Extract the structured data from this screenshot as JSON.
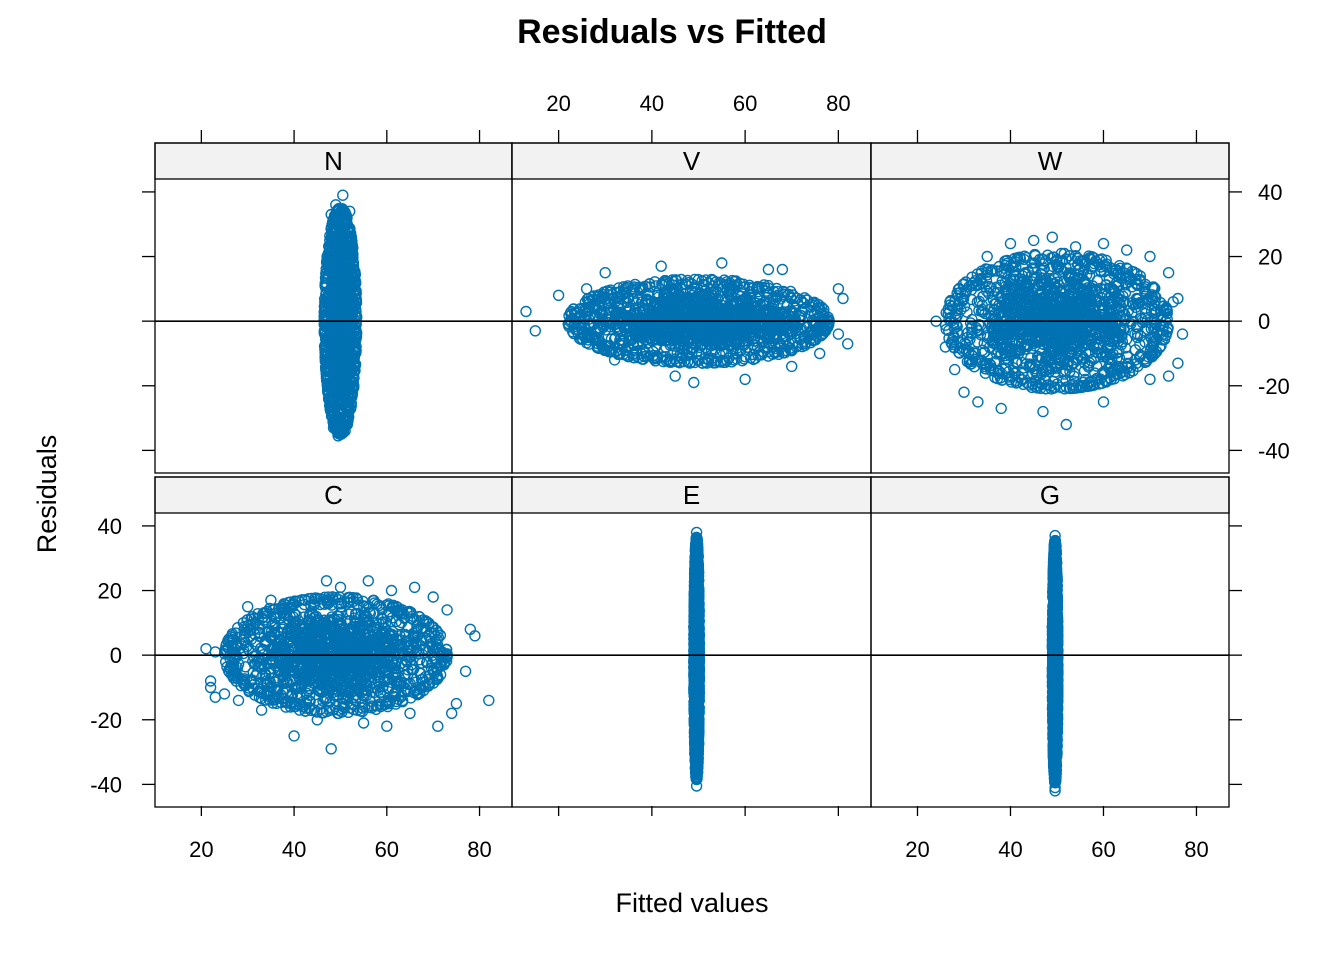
{
  "chart_data": {
    "type": "scatter",
    "title": "Residuals vs Fitted",
    "xlabel": "Fitted values",
    "ylabel": "Residuals",
    "xlim": [
      10,
      87
    ],
    "ylim": [
      -47,
      44
    ],
    "x_ticks": [
      20,
      40,
      60,
      80
    ],
    "y_ticks": [
      -40,
      -20,
      0,
      20,
      40
    ],
    "reference_line_y": 0,
    "grid": false,
    "point_color": "#0072B2",
    "point_symbol": "open-circle",
    "layout": {
      "columns": 3,
      "rows": 2
    },
    "panels": [
      {
        "label": "N",
        "cloud": {
          "x_center": 50,
          "x_halfwidth": 3.5,
          "y_center": 0,
          "y_halfheight": 35
        },
        "points": [
          [
            50.5,
            39
          ],
          [
            49.5,
            -35.5
          ],
          [
            48,
            33
          ],
          [
            52,
            34
          ],
          [
            48.5,
            -33
          ],
          [
            51.5,
            -32
          ],
          [
            47.5,
            20
          ],
          [
            52.5,
            -20
          ],
          [
            47.5,
            -8
          ],
          [
            52.5,
            10
          ],
          [
            49,
            36
          ],
          [
            51,
            -34
          ]
        ]
      },
      {
        "label": "V",
        "cloud": {
          "x_center": 50,
          "x_halfwidth": 28,
          "y_center": 0,
          "y_halfheight": 13
        },
        "points": [
          [
            13,
            3
          ],
          [
            15,
            -3
          ],
          [
            20,
            8
          ],
          [
            81,
            7
          ],
          [
            82,
            -7
          ],
          [
            80,
            10
          ],
          [
            80,
            -4
          ],
          [
            42,
            17
          ],
          [
            55,
            18
          ],
          [
            65,
            16
          ],
          [
            45,
            -17
          ],
          [
            60,
            -18
          ],
          [
            70,
            -14
          ],
          [
            68,
            16
          ],
          [
            30,
            15
          ],
          [
            32,
            -12
          ],
          [
            76,
            -10
          ],
          [
            26,
            10
          ],
          [
            49,
            -19
          ]
        ]
      },
      {
        "label": "W",
        "cloud": {
          "x_center": 50,
          "x_halfwidth": 24,
          "y_center": 0,
          "y_halfheight": 21
        },
        "points": [
          [
            24,
            0
          ],
          [
            26,
            -8
          ],
          [
            28,
            -15
          ],
          [
            30,
            -22
          ],
          [
            33,
            -25
          ],
          [
            38,
            -27
          ],
          [
            52,
            -32
          ],
          [
            47,
            -28
          ],
          [
            60,
            -25
          ],
          [
            70,
            -18
          ],
          [
            74,
            -17
          ],
          [
            76,
            -13
          ],
          [
            76,
            7
          ],
          [
            74,
            15
          ],
          [
            70,
            20
          ],
          [
            65,
            22
          ],
          [
            60,
            24
          ],
          [
            54,
            23
          ],
          [
            49,
            26
          ],
          [
            45,
            25
          ],
          [
            40,
            24
          ],
          [
            35,
            20
          ],
          [
            29,
            10
          ],
          [
            27,
            5
          ],
          [
            77,
            -4
          ],
          [
            75,
            6
          ]
        ]
      },
      {
        "label": "C",
        "cloud": {
          "x_center": 49,
          "x_halfwidth": 24,
          "y_center": 0,
          "y_halfheight": 18
        },
        "points": [
          [
            21,
            2
          ],
          [
            23,
            1
          ],
          [
            22,
            -8
          ],
          [
            22,
            -10
          ],
          [
            23,
            -13
          ],
          [
            25,
            -12
          ],
          [
            79,
            6
          ],
          [
            78,
            8
          ],
          [
            82,
            -14
          ],
          [
            77,
            -5
          ],
          [
            75,
            -15
          ],
          [
            74,
            -18
          ],
          [
            71,
            -22
          ],
          [
            48,
            -29
          ],
          [
            40,
            -25
          ],
          [
            45,
            -20
          ],
          [
            50,
            21
          ],
          [
            56,
            23
          ],
          [
            61,
            20
          ],
          [
            66,
            21
          ],
          [
            70,
            18
          ],
          [
            47,
            23
          ],
          [
            55,
            -21
          ],
          [
            65,
            -18
          ],
          [
            60,
            -22
          ],
          [
            30,
            15
          ],
          [
            35,
            17
          ],
          [
            28,
            -14
          ],
          [
            33,
            -17
          ],
          [
            73,
            14
          ]
        ]
      },
      {
        "label": "E",
        "cloud": {
          "x_center": 49.6,
          "x_halfwidth": 0.6,
          "y_center": -1,
          "y_halfheight": 37.5
        },
        "points": [
          [
            49.6,
            38
          ],
          [
            49.6,
            -40.5
          ],
          [
            49.6,
            -38.5
          ],
          [
            49.6,
            -35
          ],
          [
            49.6,
            35
          ],
          [
            49.6,
            30
          ],
          [
            49.6,
            -30
          ]
        ]
      },
      {
        "label": "G",
        "cloud": {
          "x_center": 49.6,
          "x_halfwidth": 0.6,
          "y_center": -2,
          "y_halfheight": 37.5
        },
        "points": [
          [
            49.6,
            37
          ],
          [
            49.6,
            -41
          ],
          [
            49.6,
            -42
          ],
          [
            49.6,
            -39
          ],
          [
            49.6,
            -36
          ],
          [
            49.6,
            34
          ],
          [
            49.6,
            30
          ],
          [
            49.6,
            -30
          ]
        ]
      }
    ]
  }
}
